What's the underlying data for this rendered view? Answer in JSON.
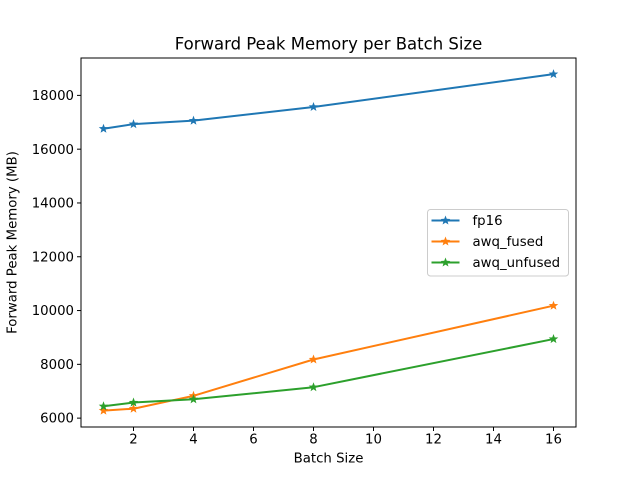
{
  "chart_data": {
    "type": "line",
    "title": "Forward Peak Memory per Batch Size",
    "xlabel": "Batch Size",
    "ylabel": "Forward Peak Memory (MB)",
    "x": [
      1,
      2,
      4,
      8,
      16
    ],
    "series": [
      {
        "name": "fp16",
        "color": "#1f77b4",
        "marker": "star",
        "values": [
          16760,
          16930,
          17060,
          17570,
          18790
        ]
      },
      {
        "name": "awq_fused",
        "color": "#ff7f0e",
        "marker": "star",
        "values": [
          6280,
          6350,
          6830,
          8180,
          10180
        ]
      },
      {
        "name": "awq_unfused",
        "color": "#2ca02c",
        "marker": "star",
        "values": [
          6440,
          6580,
          6700,
          7150,
          8940
        ]
      }
    ],
    "xticks": [
      2,
      4,
      6,
      8,
      10,
      12,
      14,
      16
    ],
    "yticks": [
      6000,
      8000,
      10000,
      12000,
      14000,
      16000,
      18000
    ],
    "xlim": [
      0.25,
      16.75
    ],
    "ylim": [
      5670,
      19390
    ],
    "grid": false,
    "legend": {
      "position": "center-right",
      "entries": [
        "fp16",
        "awq_fused",
        "awq_unfused"
      ]
    },
    "background_color": "#ffffff",
    "axis_color": "#000000"
  }
}
